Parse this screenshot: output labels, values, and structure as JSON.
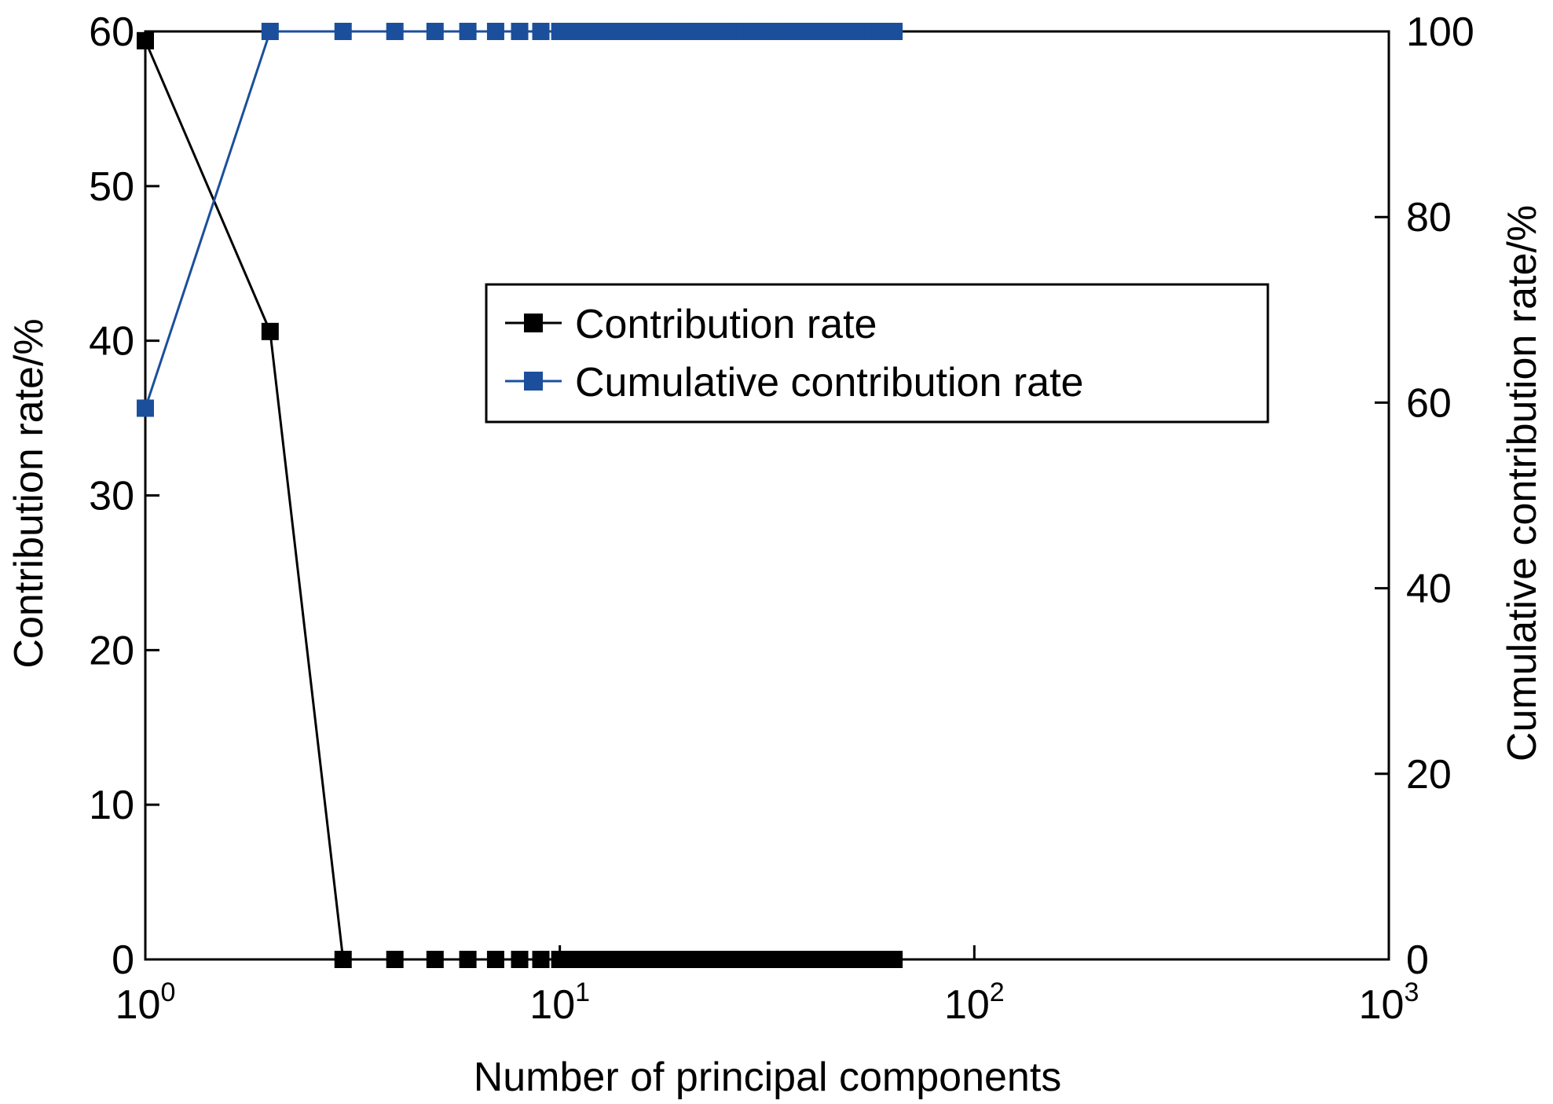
{
  "chart_data": {
    "type": "line",
    "xlabel": "Number of principal components",
    "ylabel": "Contribution rate/%",
    "y2label": "Cumulative contribution rate/%",
    "x_scale": "log",
    "xlim": [
      1,
      1000
    ],
    "ylim": [
      0,
      60
    ],
    "y2lim": [
      0,
      100
    ],
    "x_ticks": [
      {
        "base": "10",
        "exp": "0",
        "value": 1
      },
      {
        "base": "10",
        "exp": "1",
        "value": 10
      },
      {
        "base": "10",
        "exp": "2",
        "value": 100
      },
      {
        "base": "10",
        "exp": "3",
        "value": 1000
      }
    ],
    "y_ticks": [
      0,
      10,
      20,
      30,
      40,
      50,
      60
    ],
    "y2_ticks": [
      0,
      20,
      40,
      60,
      80,
      100
    ],
    "legend_position": "upper-center",
    "series": [
      {
        "name": "Contribution rate",
        "axis": "left",
        "color": "#000000",
        "x": [
          1,
          2,
          3,
          4,
          5,
          6,
          7,
          8,
          9,
          10,
          11,
          12,
          13,
          14,
          15,
          16,
          17,
          18,
          19,
          20,
          21,
          22,
          23,
          24,
          25,
          26,
          27,
          28,
          29,
          30,
          31,
          32,
          33,
          34,
          35,
          36,
          37,
          38,
          39,
          40,
          41,
          42,
          43,
          44,
          45,
          46,
          47,
          48,
          49,
          50,
          51,
          52,
          53,
          54,
          55,
          56,
          57,
          58,
          59,
          60,
          61,
          62,
          63,
          64
        ],
        "y": [
          59.4,
          40.6,
          0,
          0,
          0,
          0,
          0,
          0,
          0,
          0,
          0,
          0,
          0,
          0,
          0,
          0,
          0,
          0,
          0,
          0,
          0,
          0,
          0,
          0,
          0,
          0,
          0,
          0,
          0,
          0,
          0,
          0,
          0,
          0,
          0,
          0,
          0,
          0,
          0,
          0,
          0,
          0,
          0,
          0,
          0,
          0,
          0,
          0,
          0,
          0,
          0,
          0,
          0,
          0,
          0,
          0,
          0,
          0,
          0,
          0,
          0,
          0,
          0,
          0
        ]
      },
      {
        "name": "Cumulative contribution rate",
        "axis": "right",
        "color": "#1b4f9c",
        "x": [
          1,
          2,
          3,
          4,
          5,
          6,
          7,
          8,
          9,
          10,
          11,
          12,
          13,
          14,
          15,
          16,
          17,
          18,
          19,
          20,
          21,
          22,
          23,
          24,
          25,
          26,
          27,
          28,
          29,
          30,
          31,
          32,
          33,
          34,
          35,
          36,
          37,
          38,
          39,
          40,
          41,
          42,
          43,
          44,
          45,
          46,
          47,
          48,
          49,
          50,
          51,
          52,
          53,
          54,
          55,
          56,
          57,
          58,
          59,
          60,
          61,
          62,
          63,
          64
        ],
        "y": [
          59.4,
          100,
          100,
          100,
          100,
          100,
          100,
          100,
          100,
          100,
          100,
          100,
          100,
          100,
          100,
          100,
          100,
          100,
          100,
          100,
          100,
          100,
          100,
          100,
          100,
          100,
          100,
          100,
          100,
          100,
          100,
          100,
          100,
          100,
          100,
          100,
          100,
          100,
          100,
          100,
          100,
          100,
          100,
          100,
          100,
          100,
          100,
          100,
          100,
          100,
          100,
          100,
          100,
          100,
          100,
          100,
          100,
          100,
          100,
          100,
          100,
          100,
          100,
          100
        ]
      }
    ]
  }
}
